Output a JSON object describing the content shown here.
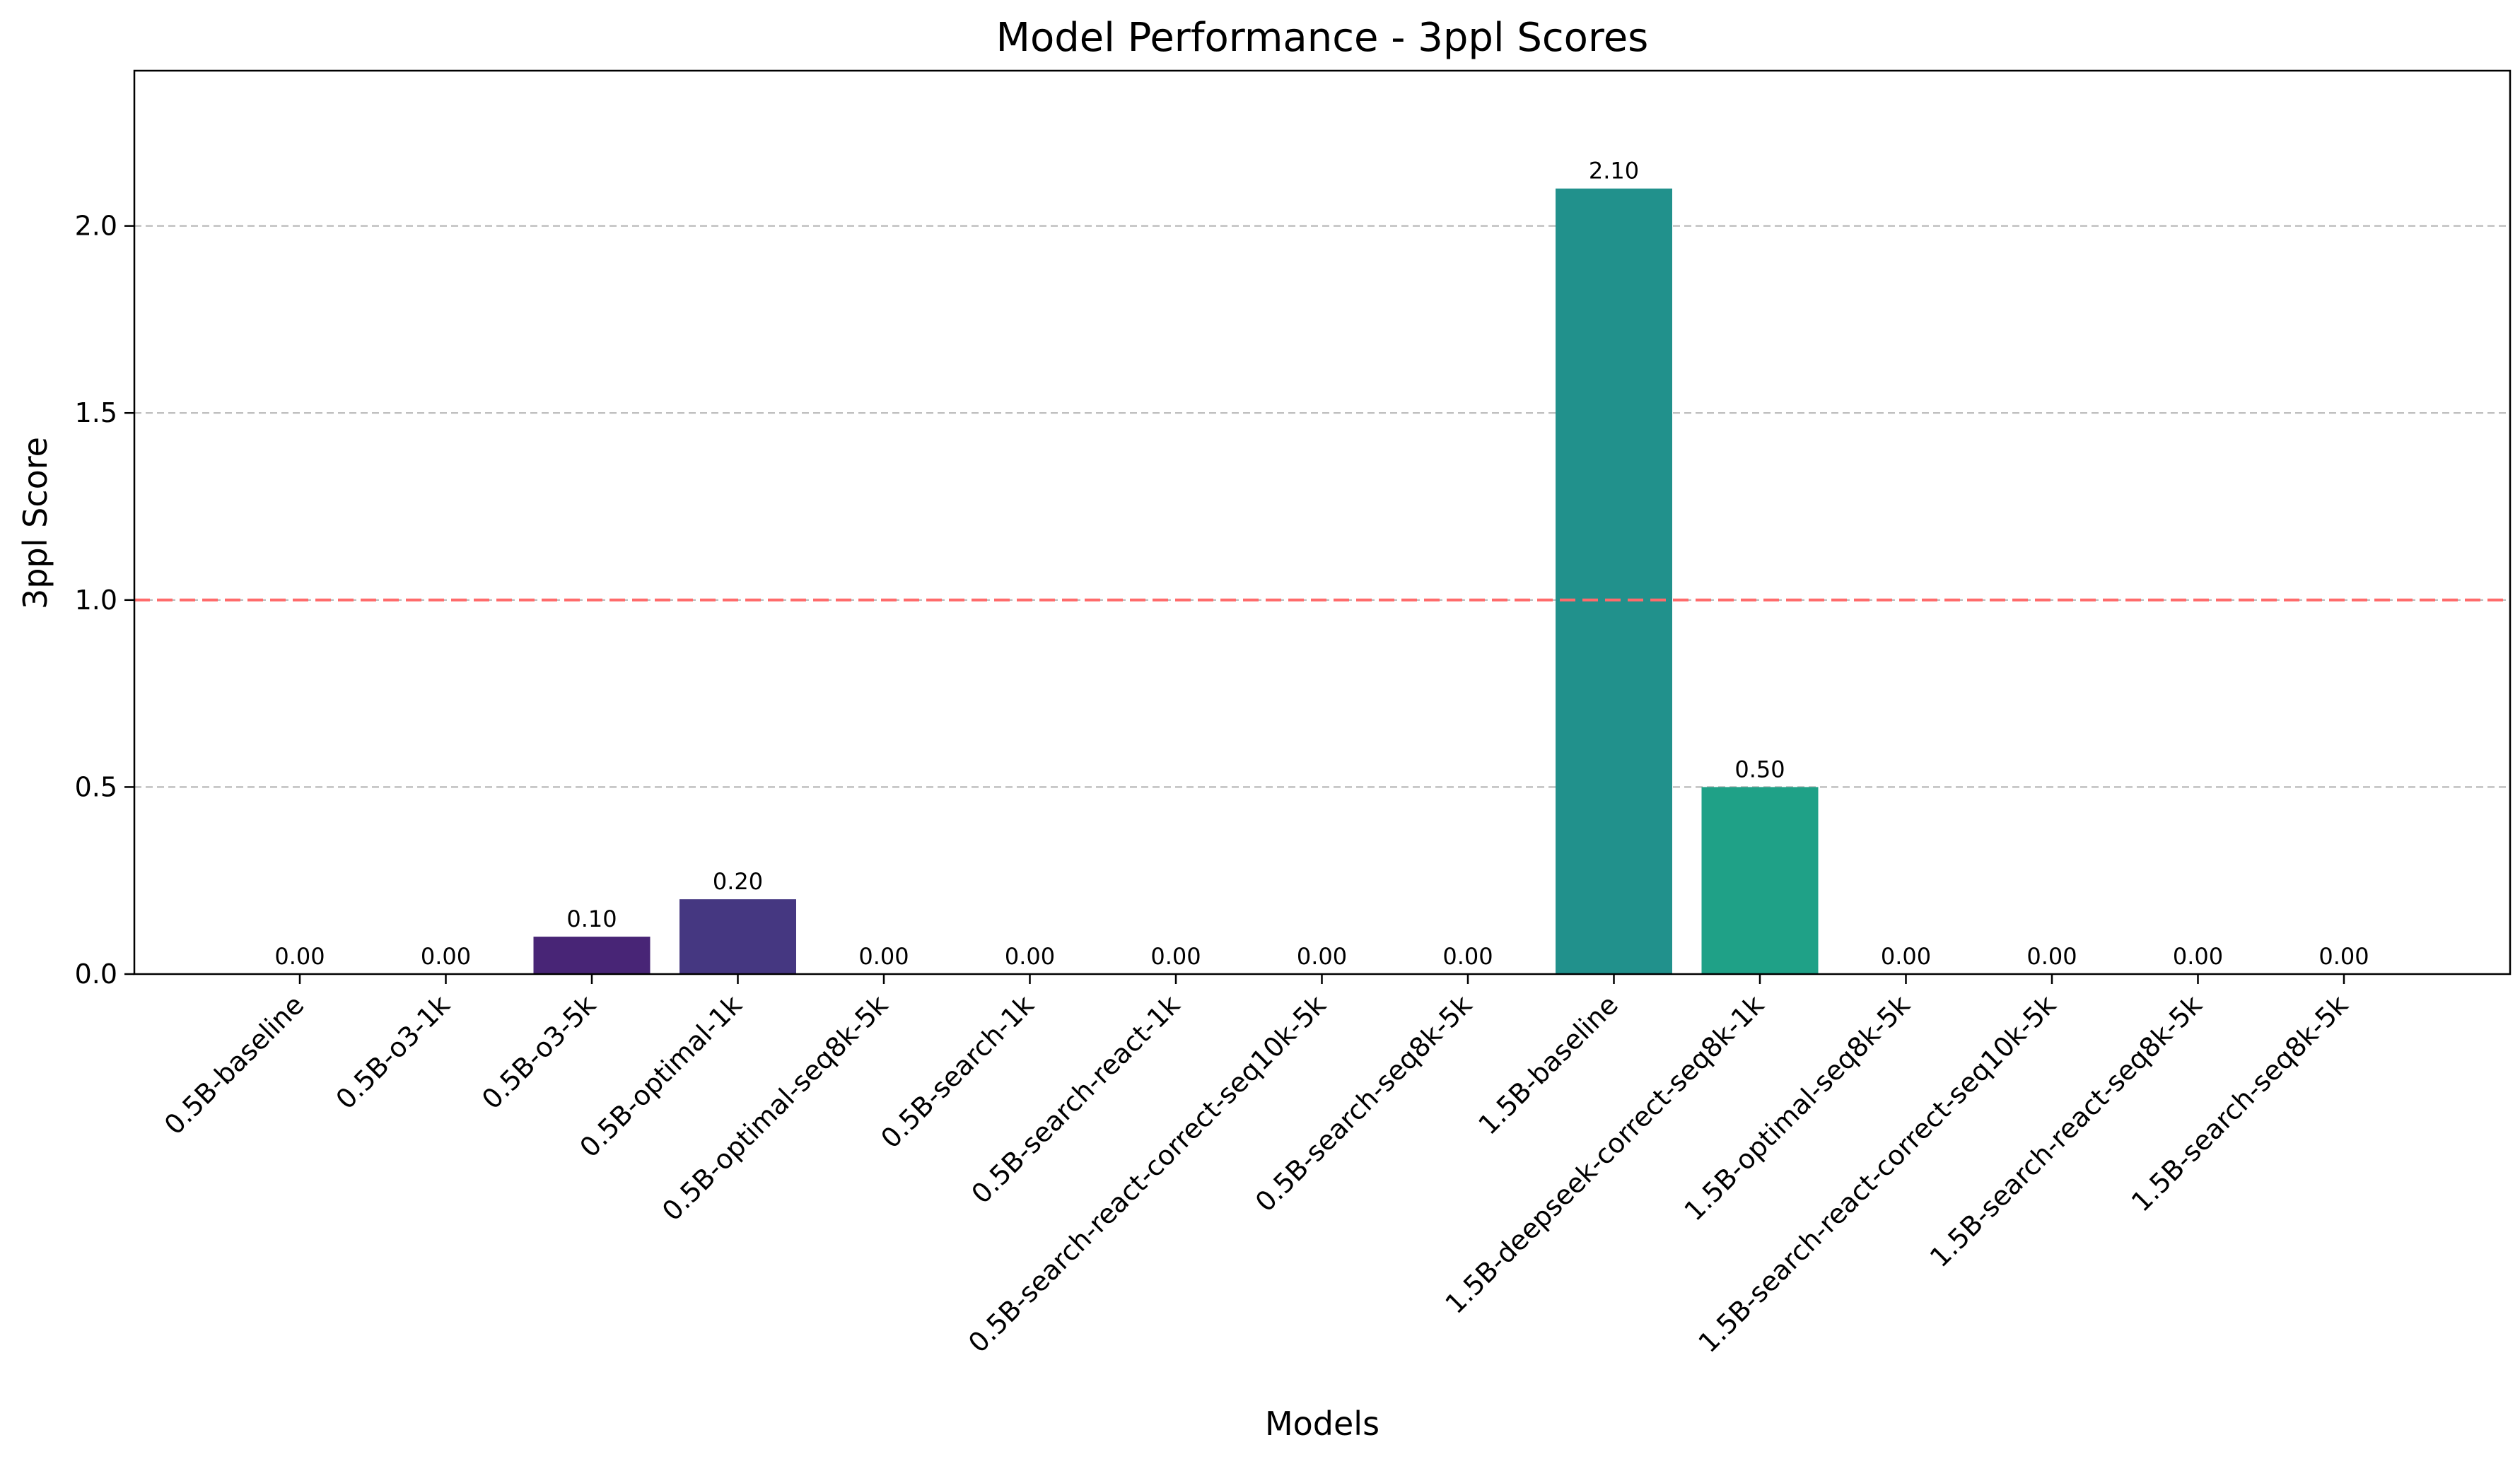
{
  "chart_data": {
    "type": "bar",
    "title": "Model Performance - 3ppl Scores",
    "xlabel": "Models",
    "ylabel": "3ppl Score",
    "ylim": [
      0,
      2.415
    ],
    "yticks": [
      0.0,
      0.5,
      1.0,
      1.5,
      2.0
    ],
    "ytick_labels": [
      "0.0",
      "0.5",
      "1.0",
      "1.5",
      "2.0"
    ],
    "grid": "y-dashed",
    "reference_line": {
      "value": 1.0,
      "style": "dashed",
      "color": "#ff6b6b"
    },
    "categories": [
      "0.5B-baseline",
      "0.5B-o3-1k",
      "0.5B-o3-5k",
      "0.5B-optimal-1k",
      "0.5B-optimal-seq8k-5k",
      "0.5B-search-1k",
      "0.5B-search-react-1k",
      "0.5B-search-react-correct-seq10k-5k",
      "0.5B-search-seq8k-5k",
      "1.5B-baseline",
      "1.5B-deepseek-correct-seq8k-1k",
      "1.5B-optimal-seq8k-5k",
      "1.5B-search-react-correct-seq10k-5k",
      "1.5B-search-react-seq8k-5k",
      "1.5B-search-seq8k-5k"
    ],
    "values": [
      0.0,
      0.0,
      0.1,
      0.2,
      0.0,
      0.0,
      0.0,
      0.0,
      0.0,
      2.1,
      0.5,
      0.0,
      0.0,
      0.0,
      0.0
    ],
    "value_labels": [
      "0.00",
      "0.00",
      "0.10",
      "0.20",
      "0.00",
      "0.00",
      "0.00",
      "0.00",
      "0.00",
      "2.10",
      "0.50",
      "0.00",
      "0.00",
      "0.00",
      "0.00"
    ],
    "colors": [
      "#440154",
      "#481467",
      "#482576",
      "#453781",
      "#3e4989",
      "#375a8c",
      "#31688e",
      "#2b768e",
      "#25848e",
      "#21918c",
      "#1fa187",
      "#29af7f",
      "#3bbb75",
      "#55c667",
      "#75d054"
    ]
  }
}
